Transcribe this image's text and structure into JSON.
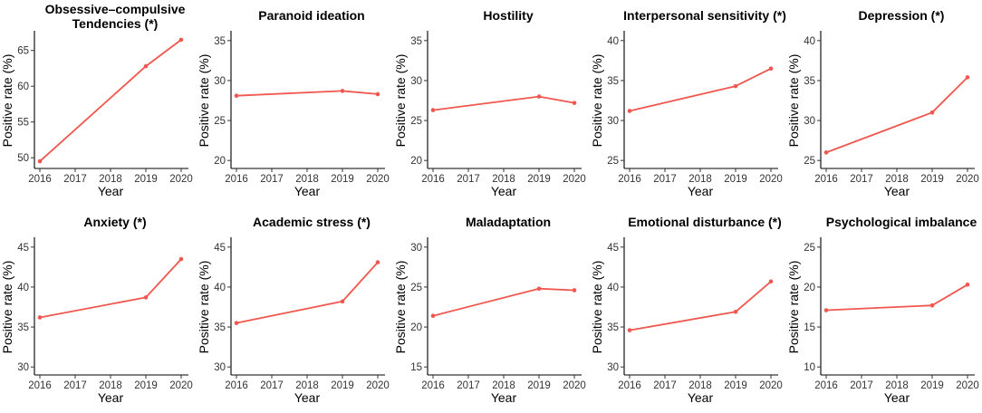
{
  "colors": {
    "line": "#f0574f",
    "point": "#f0574f"
  },
  "chart_data": [
    {
      "type": "line",
      "title": [
        "Obsessive–compulsive",
        "Tendencies (*)"
      ],
      "xlabel": "Year",
      "ylabel": "Positive rate (%)",
      "x": [
        2016,
        2019,
        2020
      ],
      "values": [
        49.5,
        62.8,
        66.5
      ],
      "ylim": [
        48.5,
        67.5
      ],
      "yticks": [
        50,
        55,
        60,
        65
      ],
      "xticks": [
        2016,
        2017,
        2018,
        2019,
        2020
      ]
    },
    {
      "type": "line",
      "title": [
        "Paranoid ideation"
      ],
      "xlabel": "Year",
      "ylabel": "Positive rate (%)",
      "x": [
        2016,
        2019,
        2020
      ],
      "values": [
        28.1,
        28.7,
        28.3
      ],
      "ylim": [
        19,
        36
      ],
      "yticks": [
        20,
        25,
        30,
        35
      ],
      "xticks": [
        2016,
        2017,
        2018,
        2019,
        2020
      ]
    },
    {
      "type": "line",
      "title": [
        "Hostility"
      ],
      "xlabel": "Year",
      "ylabel": "Positive rate (%)",
      "x": [
        2016,
        2019,
        2020
      ],
      "values": [
        26.3,
        28.0,
        27.2
      ],
      "ylim": [
        19,
        36
      ],
      "yticks": [
        20,
        25,
        30,
        35
      ],
      "xticks": [
        2016,
        2017,
        2018,
        2019,
        2020
      ]
    },
    {
      "type": "line",
      "title": [
        "Interpersonal sensitivity (*)"
      ],
      "xlabel": "Year",
      "ylabel": "Positive rate (%)",
      "x": [
        2016,
        2019,
        2020
      ],
      "values": [
        31.2,
        34.3,
        36.5
      ],
      "ylim": [
        24,
        41
      ],
      "yticks": [
        25,
        30,
        35,
        40
      ],
      "xticks": [
        2016,
        2017,
        2018,
        2019,
        2020
      ]
    },
    {
      "type": "line",
      "title": [
        "Depression (*)"
      ],
      "xlabel": "Year",
      "ylabel": "Positive rate (%)",
      "x": [
        2016,
        2019,
        2020
      ],
      "values": [
        26.0,
        31.0,
        35.4
      ],
      "ylim": [
        24,
        41
      ],
      "yticks": [
        25,
        30,
        35,
        40
      ],
      "xticks": [
        2016,
        2017,
        2018,
        2019,
        2020
      ]
    },
    {
      "type": "line",
      "title": [
        "Anxiety (*)"
      ],
      "xlabel": "Year",
      "ylabel": "Positive rate (%)",
      "x": [
        2016,
        2019,
        2020
      ],
      "values": [
        36.2,
        38.7,
        43.5
      ],
      "ylim": [
        29,
        46
      ],
      "yticks": [
        30,
        35,
        40,
        45
      ],
      "xticks": [
        2016,
        2017,
        2018,
        2019,
        2020
      ]
    },
    {
      "type": "line",
      "title": [
        "Academic stress (*)"
      ],
      "xlabel": "Year",
      "ylabel": "Positive rate (%)",
      "x": [
        2016,
        2019,
        2020
      ],
      "values": [
        35.5,
        38.2,
        43.1
      ],
      "ylim": [
        29,
        46
      ],
      "yticks": [
        30,
        35,
        40,
        45
      ],
      "xticks": [
        2016,
        2017,
        2018,
        2019,
        2020
      ]
    },
    {
      "type": "line",
      "title": [
        "Maladaptation"
      ],
      "xlabel": "Year",
      "ylabel": "Positive rate (%)",
      "x": [
        2016,
        2019,
        2020
      ],
      "values": [
        21.4,
        24.8,
        24.6
      ],
      "ylim": [
        14,
        31
      ],
      "yticks": [
        15,
        20,
        25,
        30
      ],
      "xticks": [
        2016,
        2017,
        2018,
        2019,
        2020
      ]
    },
    {
      "type": "line",
      "title": [
        "Emotional disturbance (*)"
      ],
      "xlabel": "Year",
      "ylabel": "Positive rate (%)",
      "x": [
        2016,
        2019,
        2020
      ],
      "values": [
        34.6,
        36.9,
        40.7
      ],
      "ylim": [
        29,
        46
      ],
      "yticks": [
        30,
        35,
        40,
        45
      ],
      "xticks": [
        2016,
        2017,
        2018,
        2019,
        2020
      ]
    },
    {
      "type": "line",
      "title": [
        "Psychological imbalance"
      ],
      "xlabel": "Year",
      "ylabel": "Positive rate (%)",
      "x": [
        2016,
        2019,
        2020
      ],
      "values": [
        17.1,
        17.7,
        20.3
      ],
      "ylim": [
        9,
        26
      ],
      "yticks": [
        10,
        15,
        20,
        25
      ],
      "xticks": [
        2016,
        2017,
        2018,
        2019,
        2020
      ]
    }
  ]
}
